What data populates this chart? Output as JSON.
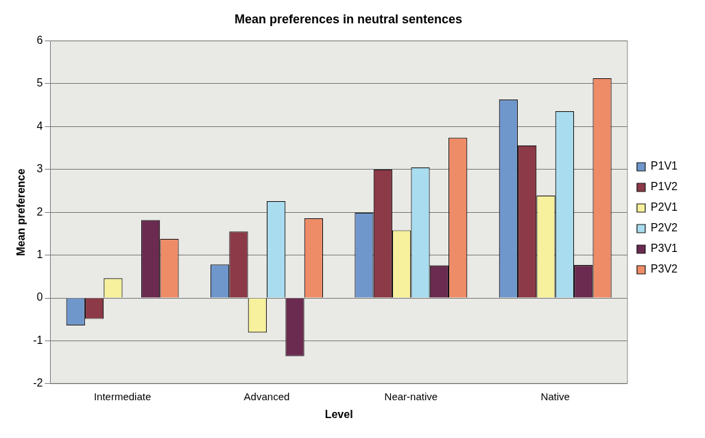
{
  "chart_data": {
    "type": "bar",
    "title": "Mean preferences in neutral sentences",
    "xlabel": "Level",
    "ylabel": "Mean preference",
    "categories": [
      "Intermediate",
      "Advanced",
      "Near-native",
      "Native"
    ],
    "series": [
      {
        "name": "P1V1",
        "color": "#7097cc",
        "values": [
          -0.64,
          0.78,
          1.99,
          4.63
        ]
      },
      {
        "name": "P1V2",
        "color": "#8c3a48",
        "values": [
          -0.49,
          1.55,
          3.0,
          3.56
        ]
      },
      {
        "name": "P2V1",
        "color": "#f7f09c",
        "values": [
          0.46,
          -0.81,
          1.58,
          2.39
        ]
      },
      {
        "name": "P2V2",
        "color": "#a9dcee",
        "values": [
          null,
          2.26,
          3.05,
          4.36
        ]
      },
      {
        "name": "P3V1",
        "color": "#6b2b50",
        "values": [
          1.82,
          -1.36,
          0.76,
          0.77
        ]
      },
      {
        "name": "P3V2",
        "color": "#ef8c68",
        "values": [
          1.38,
          1.86,
          3.74,
          5.13
        ]
      }
    ],
    "ylim": [
      -2,
      6
    ],
    "yticks": [
      -2,
      -1,
      0,
      1,
      2,
      3,
      4,
      5,
      6
    ],
    "grid": "y",
    "legend": "right"
  }
}
